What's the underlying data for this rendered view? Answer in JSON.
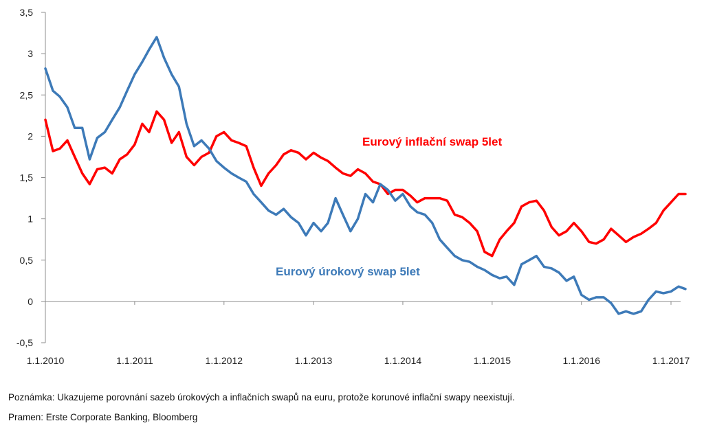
{
  "chart_data": {
    "type": "line",
    "x_range": [
      "2010-01-01",
      "2017-03-01"
    ],
    "ylim": [
      -0.5,
      3.5
    ],
    "yticks": [
      -0.5,
      0,
      0.5,
      1,
      1.5,
      2,
      2.5,
      3,
      3.5
    ],
    "ytick_labels": [
      "-0,5",
      "0",
      "0,5",
      "1",
      "1,5",
      "2",
      "2,5",
      "3",
      "3,5"
    ],
    "xtick_dates": [
      "2010-01-01",
      "2011-01-01",
      "2012-01-01",
      "2013-01-01",
      "2014-01-01",
      "2015-01-01",
      "2016-01-01",
      "2017-01-01"
    ],
    "xtick_labels": [
      "1.1.2010",
      "1.1.2011",
      "1.1.2012",
      "1.1.2013",
      "1.1.2014",
      "1.1.2015",
      "1.1.2016",
      "1.1.2017"
    ],
    "grid": false,
    "series": [
      {
        "name": "Eurový inflační swap 5let",
        "color": "#ff0000",
        "points": [
          [
            "2010-01-01",
            2.2
          ],
          [
            "2010-02-01",
            1.82
          ],
          [
            "2010-03-01",
            1.85
          ],
          [
            "2010-04-01",
            1.95
          ],
          [
            "2010-05-01",
            1.75
          ],
          [
            "2010-06-01",
            1.55
          ],
          [
            "2010-07-01",
            1.42
          ],
          [
            "2010-08-01",
            1.6
          ],
          [
            "2010-09-01",
            1.62
          ],
          [
            "2010-10-01",
            1.55
          ],
          [
            "2010-11-01",
            1.72
          ],
          [
            "2010-12-01",
            1.78
          ],
          [
            "2011-01-01",
            1.9
          ],
          [
            "2011-02-01",
            2.15
          ],
          [
            "2011-03-01",
            2.05
          ],
          [
            "2011-04-01",
            2.3
          ],
          [
            "2011-05-01",
            2.2
          ],
          [
            "2011-06-01",
            1.92
          ],
          [
            "2011-07-01",
            2.05
          ],
          [
            "2011-08-01",
            1.75
          ],
          [
            "2011-09-01",
            1.65
          ],
          [
            "2011-10-01",
            1.75
          ],
          [
            "2011-11-01",
            1.8
          ],
          [
            "2011-12-01",
            2.0
          ],
          [
            "2012-01-01",
            2.05
          ],
          [
            "2012-02-01",
            1.95
          ],
          [
            "2012-03-01",
            1.92
          ],
          [
            "2012-04-01",
            1.88
          ],
          [
            "2012-05-01",
            1.62
          ],
          [
            "2012-06-01",
            1.4
          ],
          [
            "2012-07-01",
            1.55
          ],
          [
            "2012-08-01",
            1.65
          ],
          [
            "2012-09-01",
            1.78
          ],
          [
            "2012-10-01",
            1.83
          ],
          [
            "2012-11-01",
            1.8
          ],
          [
            "2012-12-01",
            1.72
          ],
          [
            "2013-01-01",
            1.8
          ],
          [
            "2013-02-01",
            1.74
          ],
          [
            "2013-03-01",
            1.7
          ],
          [
            "2013-04-01",
            1.62
          ],
          [
            "2013-05-01",
            1.55
          ],
          [
            "2013-06-01",
            1.52
          ],
          [
            "2013-07-01",
            1.6
          ],
          [
            "2013-08-01",
            1.55
          ],
          [
            "2013-09-01",
            1.45
          ],
          [
            "2013-10-01",
            1.42
          ],
          [
            "2013-11-01",
            1.3
          ],
          [
            "2013-12-01",
            1.35
          ],
          [
            "2014-01-01",
            1.35
          ],
          [
            "2014-02-01",
            1.28
          ],
          [
            "2014-03-01",
            1.2
          ],
          [
            "2014-04-01",
            1.25
          ],
          [
            "2014-05-01",
            1.25
          ],
          [
            "2014-06-01",
            1.25
          ],
          [
            "2014-07-01",
            1.22
          ],
          [
            "2014-08-01",
            1.05
          ],
          [
            "2014-09-01",
            1.02
          ],
          [
            "2014-10-01",
            0.95
          ],
          [
            "2014-11-01",
            0.85
          ],
          [
            "2014-12-01",
            0.6
          ],
          [
            "2015-01-01",
            0.55
          ],
          [
            "2015-02-01",
            0.75
          ],
          [
            "2015-03-01",
            0.85
          ],
          [
            "2015-04-01",
            0.95
          ],
          [
            "2015-05-01",
            1.15
          ],
          [
            "2015-06-01",
            1.2
          ],
          [
            "2015-07-01",
            1.22
          ],
          [
            "2015-08-01",
            1.1
          ],
          [
            "2015-09-01",
            0.9
          ],
          [
            "2015-10-01",
            0.8
          ],
          [
            "2015-11-01",
            0.85
          ],
          [
            "2015-12-01",
            0.95
          ],
          [
            "2016-01-01",
            0.85
          ],
          [
            "2016-02-01",
            0.72
          ],
          [
            "2016-03-01",
            0.7
          ],
          [
            "2016-04-01",
            0.75
          ],
          [
            "2016-05-01",
            0.88
          ],
          [
            "2016-06-01",
            0.8
          ],
          [
            "2016-07-01",
            0.72
          ],
          [
            "2016-08-01",
            0.78
          ],
          [
            "2016-09-01",
            0.82
          ],
          [
            "2016-10-01",
            0.88
          ],
          [
            "2016-11-01",
            0.95
          ],
          [
            "2016-12-01",
            1.1
          ],
          [
            "2017-01-01",
            1.2
          ],
          [
            "2017-02-01",
            1.3
          ],
          [
            "2017-03-01",
            1.3
          ]
        ]
      },
      {
        "name": "Eurový úrokový swap 5let",
        "color": "#3d7ab8",
        "points": [
          [
            "2010-01-01",
            2.82
          ],
          [
            "2010-02-01",
            2.55
          ],
          [
            "2010-03-01",
            2.48
          ],
          [
            "2010-04-01",
            2.35
          ],
          [
            "2010-05-01",
            2.1
          ],
          [
            "2010-06-01",
            2.1
          ],
          [
            "2010-07-01",
            1.72
          ],
          [
            "2010-08-01",
            1.98
          ],
          [
            "2010-09-01",
            2.05
          ],
          [
            "2010-10-01",
            2.2
          ],
          [
            "2010-11-01",
            2.35
          ],
          [
            "2010-12-01",
            2.55
          ],
          [
            "2011-01-01",
            2.75
          ],
          [
            "2011-02-01",
            2.9
          ],
          [
            "2011-03-01",
            3.05
          ],
          [
            "2011-04-01",
            3.2
          ],
          [
            "2011-05-01",
            2.95
          ],
          [
            "2011-06-01",
            2.75
          ],
          [
            "2011-07-01",
            2.6
          ],
          [
            "2011-08-01",
            2.15
          ],
          [
            "2011-09-01",
            1.88
          ],
          [
            "2011-10-01",
            1.95
          ],
          [
            "2011-11-01",
            1.85
          ],
          [
            "2011-12-01",
            1.7
          ],
          [
            "2012-01-01",
            1.62
          ],
          [
            "2012-02-01",
            1.55
          ],
          [
            "2012-03-01",
            1.5
          ],
          [
            "2012-04-01",
            1.45
          ],
          [
            "2012-05-01",
            1.3
          ],
          [
            "2012-06-01",
            1.2
          ],
          [
            "2012-07-01",
            1.1
          ],
          [
            "2012-08-01",
            1.05
          ],
          [
            "2012-09-01",
            1.12
          ],
          [
            "2012-10-01",
            1.02
          ],
          [
            "2012-11-01",
            0.95
          ],
          [
            "2012-12-01",
            0.8
          ],
          [
            "2013-01-01",
            0.95
          ],
          [
            "2013-02-01",
            0.85
          ],
          [
            "2013-03-01",
            0.95
          ],
          [
            "2013-04-01",
            1.25
          ],
          [
            "2013-05-01",
            1.05
          ],
          [
            "2013-06-01",
            0.85
          ],
          [
            "2013-07-01",
            1.0
          ],
          [
            "2013-08-01",
            1.3
          ],
          [
            "2013-09-01",
            1.2
          ],
          [
            "2013-10-01",
            1.42
          ],
          [
            "2013-11-01",
            1.35
          ],
          [
            "2013-12-01",
            1.22
          ],
          [
            "2014-01-01",
            1.3
          ],
          [
            "2014-02-01",
            1.15
          ],
          [
            "2014-03-01",
            1.08
          ],
          [
            "2014-04-01",
            1.05
          ],
          [
            "2014-05-01",
            0.95
          ],
          [
            "2014-06-01",
            0.75
          ],
          [
            "2014-07-01",
            0.65
          ],
          [
            "2014-08-01",
            0.55
          ],
          [
            "2014-09-01",
            0.5
          ],
          [
            "2014-10-01",
            0.48
          ],
          [
            "2014-11-01",
            0.42
          ],
          [
            "2014-12-01",
            0.38
          ],
          [
            "2015-01-01",
            0.32
          ],
          [
            "2015-02-01",
            0.28
          ],
          [
            "2015-03-01",
            0.3
          ],
          [
            "2015-04-01",
            0.2
          ],
          [
            "2015-05-01",
            0.45
          ],
          [
            "2015-06-01",
            0.5
          ],
          [
            "2015-07-01",
            0.55
          ],
          [
            "2015-08-01",
            0.42
          ],
          [
            "2015-09-01",
            0.4
          ],
          [
            "2015-10-01",
            0.35
          ],
          [
            "2015-11-01",
            0.25
          ],
          [
            "2015-12-01",
            0.3
          ],
          [
            "2016-01-01",
            0.08
          ],
          [
            "2016-02-01",
            0.02
          ],
          [
            "2016-03-01",
            0.05
          ],
          [
            "2016-04-01",
            0.05
          ],
          [
            "2016-05-01",
            -0.02
          ],
          [
            "2016-06-01",
            -0.15
          ],
          [
            "2016-07-01",
            -0.12
          ],
          [
            "2016-08-01",
            -0.15
          ],
          [
            "2016-09-01",
            -0.12
          ],
          [
            "2016-10-01",
            0.02
          ],
          [
            "2016-11-01",
            0.12
          ],
          [
            "2016-12-01",
            0.1
          ],
          [
            "2017-01-01",
            0.12
          ],
          [
            "2017-02-01",
            0.18
          ],
          [
            "2017-03-01",
            0.15
          ]
        ]
      }
    ],
    "annotations": [
      {
        "series": 0,
        "text": "Eurový inflační swap 5let",
        "color": "#ff0000"
      },
      {
        "series": 1,
        "text": "Eurový úrokový swap 5let",
        "color": "#3d7ab8"
      }
    ]
  },
  "notes": {
    "note": "Poznámka: Ukazujeme porovnání sazeb úrokových a inflačních swapů na euru, protože korunové inflační swapy neexistují.",
    "source": "Pramen: Erste Corporate Banking, Bloomberg"
  }
}
